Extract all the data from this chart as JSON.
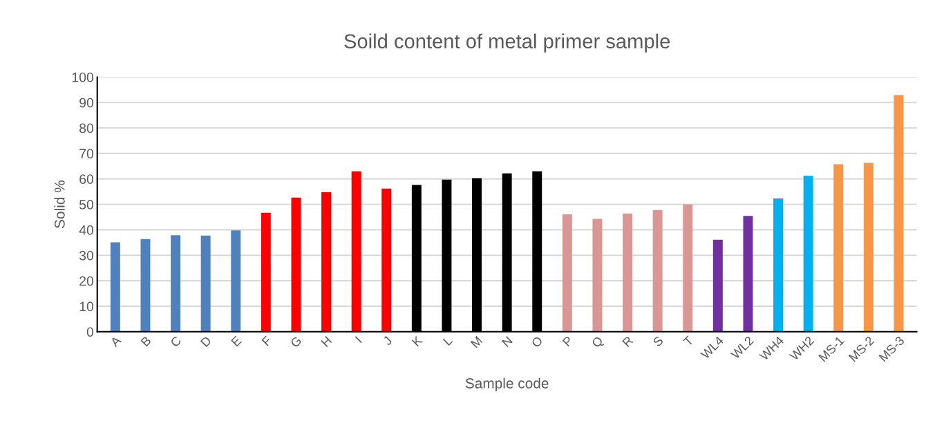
{
  "chart_data": {
    "type": "bar",
    "title": "Soild content of metal primer sample",
    "xlabel": "Sample code",
    "ylabel": "Solid %",
    "categories": [
      "A",
      "B",
      "C",
      "D",
      "E",
      "F",
      "G",
      "H",
      "I",
      "J",
      "K",
      "L",
      "M",
      "N",
      "O",
      "P",
      "Q",
      "R",
      "S",
      "T",
      "WL4",
      "WL2",
      "WH4",
      "WH2",
      "MS-1",
      "MS-2",
      "MS-3"
    ],
    "values": [
      35.1,
      36.4,
      37.9,
      37.7,
      39.8,
      46.7,
      52.7,
      54.8,
      63.0,
      56.2,
      57.6,
      59.7,
      60.3,
      62.2,
      63.0,
      46.1,
      44.3,
      46.4,
      47.8,
      50.0,
      36.1,
      45.5,
      52.3,
      61.2,
      65.8,
      66.3,
      92.9
    ],
    "colors": [
      "#4f81bd",
      "#4f81bd",
      "#4f81bd",
      "#4f81bd",
      "#4f81bd",
      "#ff0000",
      "#ff0000",
      "#ff0000",
      "#ff0000",
      "#ff0000",
      "#000000",
      "#000000",
      "#000000",
      "#000000",
      "#000000",
      "#da9694",
      "#da9694",
      "#da9694",
      "#da9694",
      "#da9694",
      "#7030a0",
      "#7030a0",
      "#00b0f0",
      "#00b0f0",
      "#f79646",
      "#f79646",
      "#f79646"
    ],
    "ylim": [
      0,
      100
    ],
    "yticks": [
      0,
      10,
      20,
      30,
      40,
      50,
      60,
      70,
      80,
      90,
      100
    ],
    "grid": "y",
    "legend": false
  }
}
